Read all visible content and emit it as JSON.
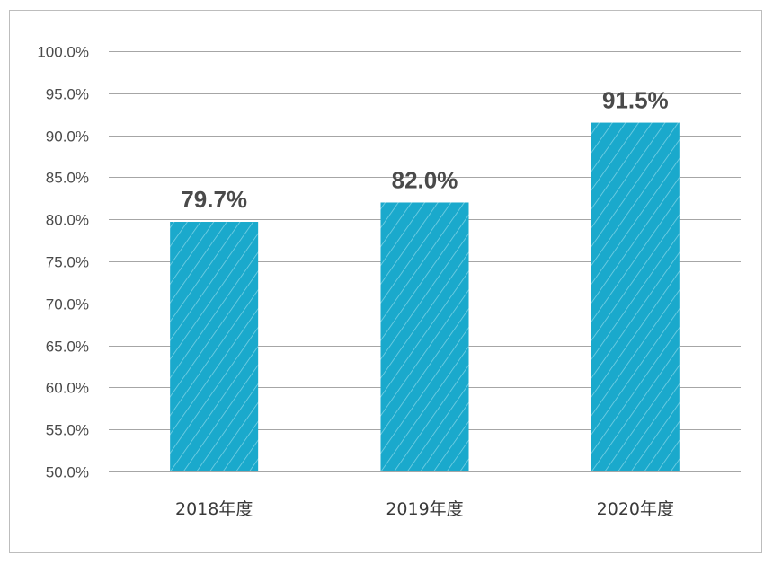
{
  "chart_data": {
    "type": "bar",
    "categories": [
      "2018年度",
      "2019年度",
      "2020年度"
    ],
    "values": [
      79.7,
      82.0,
      91.5
    ],
    "data_labels": [
      "79.7%",
      "82.0%",
      "91.5%"
    ],
    "ylim": [
      50,
      100
    ],
    "yticks": [
      50,
      55,
      60,
      65,
      70,
      75,
      80,
      85,
      90,
      95,
      100
    ],
    "ytick_labels": [
      "50.0%",
      "55.0%",
      "60.0%",
      "65.0%",
      "70.0%",
      "75.0%",
      "80.0%",
      "85.0%",
      "90.0%",
      "95.0%",
      "100.0%"
    ],
    "grid": true,
    "bar_color": "#1aa9cc",
    "bar_pattern": "diagonal-hatch"
  }
}
